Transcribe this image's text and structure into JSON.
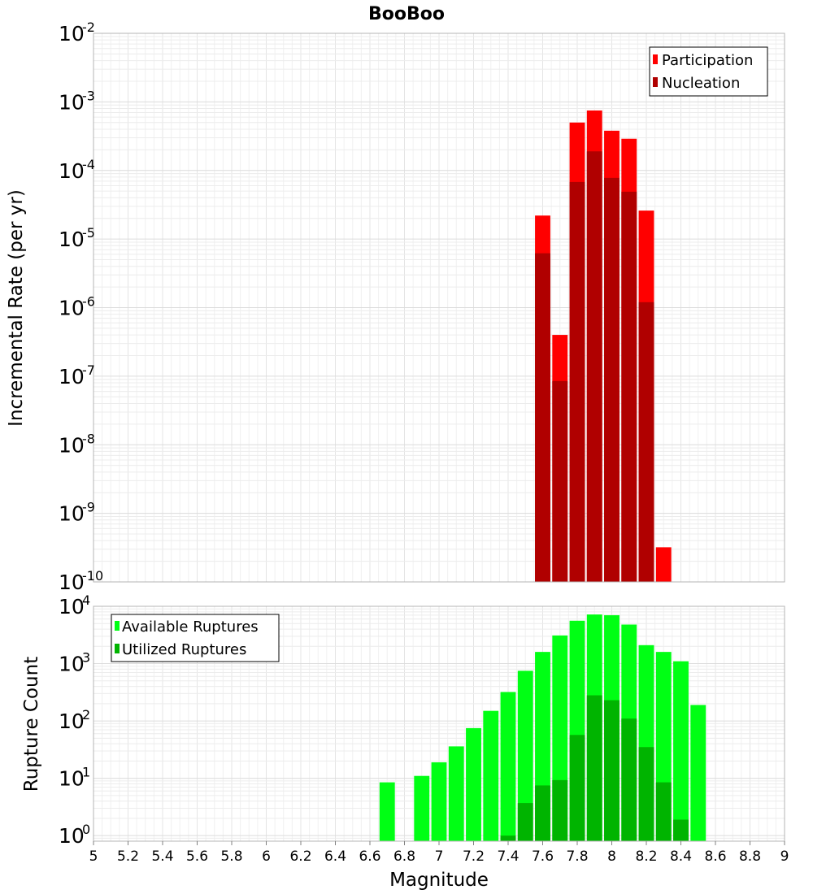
{
  "title": "BooBoo",
  "xlabel": "Magnitude",
  "chart_data": [
    {
      "type": "bar",
      "panel": "top",
      "ylabel": "Incremental Rate (per yr)",
      "yscale": "log",
      "ylim": [
        1e-10,
        0.01
      ],
      "xlim": [
        5,
        9
      ],
      "grid": true,
      "legend_position": "top-right",
      "legend": [
        "Participation",
        "Nucleation"
      ],
      "y_tick_exponents": [
        "-2",
        "-3",
        "-4",
        "-5",
        "-6",
        "-7",
        "-8",
        "-9",
        "-10"
      ],
      "x": [
        7.6,
        7.7,
        7.8,
        7.9,
        8.0,
        8.1,
        8.2,
        8.3
      ],
      "series": [
        {
          "name": "Participation",
          "color": "#ff0000",
          "values": [
            2.2e-05,
            4e-07,
            0.0005,
            0.00075,
            0.00038,
            0.00029,
            2.6e-05,
            3.2e-10
          ]
        },
        {
          "name": "Nucleation",
          "color": "#b00000",
          "values": [
            6.2e-06,
            8.5e-08,
            6.8e-05,
            0.00019,
            7.8e-05,
            4.9e-05,
            1.2e-06,
            null
          ]
        }
      ]
    },
    {
      "type": "bar",
      "panel": "bottom",
      "ylabel": "Rupture Count",
      "yscale": "log",
      "ylim": [
        0.8,
        10000.0
      ],
      "xlim": [
        5,
        9
      ],
      "grid": true,
      "legend_position": "top-left",
      "legend": [
        "Available Ruptures",
        "Utilized Ruptures"
      ],
      "y_tick_exponents": [
        "4",
        "3",
        "2",
        "1",
        "0"
      ],
      "x_ticks": [
        "5",
        "5.2",
        "5.4",
        "5.6",
        "5.8",
        "6",
        "6.2",
        "6.4",
        "6.6",
        "6.8",
        "7",
        "7.2",
        "7.4",
        "7.6",
        "7.8",
        "8",
        "8.2",
        "8.4",
        "8.6",
        "8.8",
        "9"
      ],
      "x": [
        6.7,
        6.9,
        7.0,
        7.1,
        7.2,
        7.3,
        7.4,
        7.5,
        7.6,
        7.7,
        7.8,
        7.9,
        8.0,
        8.1,
        8.2,
        8.3,
        8.4,
        8.5
      ],
      "series": [
        {
          "name": "Available Ruptures",
          "color": "#00ff14",
          "values": [
            8.5,
            11,
            19,
            36,
            75,
            150,
            320,
            750,
            1600,
            3100,
            5600,
            7200,
            7000,
            4800,
            2100,
            1600,
            1100,
            190
          ]
        },
        {
          "name": "Utilized Ruptures",
          "color": "#00b400",
          "values": [
            null,
            null,
            null,
            null,
            null,
            null,
            1,
            3.7,
            7.5,
            9.3,
            57,
            280,
            230,
            110,
            35,
            8.5,
            1.9,
            null
          ]
        }
      ]
    }
  ]
}
